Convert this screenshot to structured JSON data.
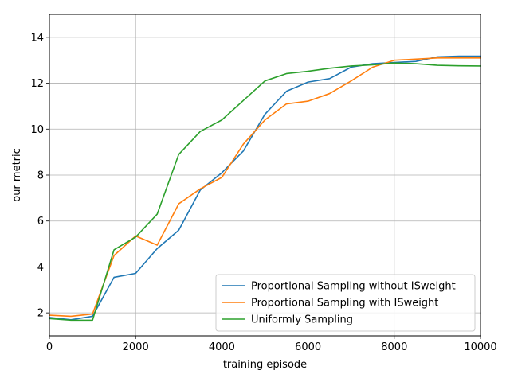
{
  "chart_data": {
    "type": "line",
    "title": "",
    "xlabel": "training episode",
    "ylabel": "our metric",
    "xlim": [
      0,
      10000
    ],
    "ylim": [
      1,
      15
    ],
    "xticks": [
      0,
      2000,
      4000,
      6000,
      8000,
      10000
    ],
    "xtick_labels": [
      "0",
      "2000",
      "4000",
      "6000",
      "8000",
      "10000"
    ],
    "yticks": [
      2,
      4,
      6,
      8,
      10,
      12,
      14
    ],
    "ytick_labels": [
      "2",
      "4",
      "6",
      "8",
      "10",
      "12",
      "14"
    ],
    "grid": true,
    "legend_position": "lower-right",
    "x": [
      0,
      500,
      1000,
      1500,
      2000,
      2500,
      3000,
      3500,
      4000,
      4500,
      5000,
      5500,
      6000,
      6500,
      7000,
      7500,
      8000,
      8500,
      9000,
      9500,
      10000
    ],
    "series": [
      {
        "name": "Proportional Sampling without ISweight",
        "color": "#1f77b4",
        "values": [
          1.8,
          1.7,
          1.85,
          3.55,
          3.72,
          4.8,
          5.6,
          7.35,
          8.1,
          9.05,
          10.65,
          11.65,
          12.05,
          12.2,
          12.7,
          12.85,
          12.9,
          12.95,
          13.15,
          13.18,
          13.18
        ]
      },
      {
        "name": "Proportional Sampling with ISweight",
        "color": "#ff7f0e",
        "values": [
          1.9,
          1.85,
          1.95,
          4.5,
          5.35,
          4.95,
          6.75,
          7.4,
          7.9,
          9.35,
          10.4,
          11.1,
          11.22,
          11.55,
          12.1,
          12.7,
          13.0,
          13.05,
          13.1,
          13.1,
          13.1
        ]
      },
      {
        "name": "Uniformly Sampling",
        "color": "#2ca02c",
        "values": [
          1.75,
          1.68,
          1.68,
          4.75,
          5.3,
          6.3,
          8.9,
          9.9,
          10.4,
          11.25,
          12.1,
          12.42,
          12.52,
          12.65,
          12.75,
          12.8,
          12.88,
          12.85,
          12.78,
          12.76,
          12.75
        ]
      }
    ]
  }
}
